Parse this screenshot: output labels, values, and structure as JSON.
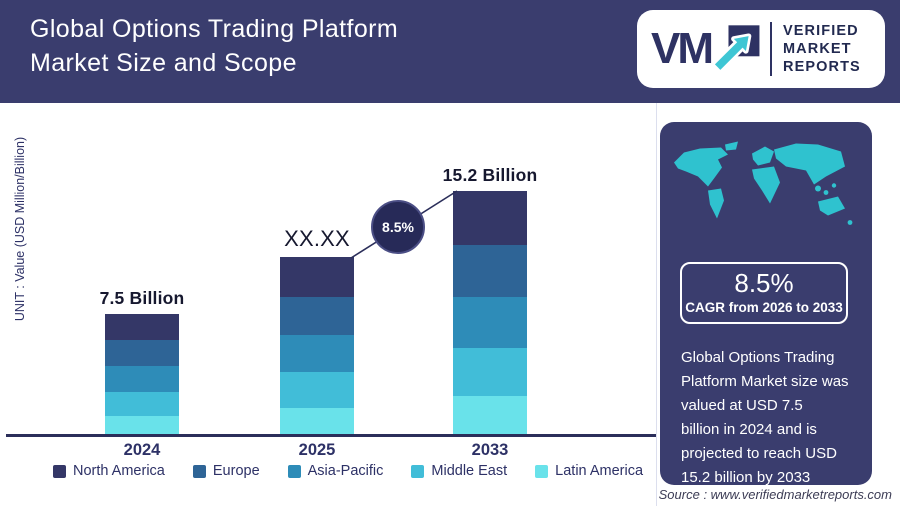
{
  "header": {
    "title_lines": [
      "Global Options Trading Platform",
      "Market Size and Scope"
    ],
    "logo": {
      "mark": "VM",
      "brand_lines": [
        "VERIFIED",
        "MARKET",
        "REPORTS"
      ]
    }
  },
  "chart_data": {
    "type": "bar",
    "stacked": true,
    "unit_label": "UNIT : Value (USD Million/Billion)",
    "value_unit": "USD Billion",
    "categories": [
      "2024",
      "2025",
      "2033"
    ],
    "totals_display": [
      "7.5 Billion",
      "XX.XX",
      "15.2 Billion"
    ],
    "cagr_badge": "8.5%",
    "legend_position": "bottom",
    "series": [
      {
        "name": "North America",
        "color": "#343767",
        "values": [
          1.6,
          2.5,
          3.4
        ]
      },
      {
        "name": "Europe",
        "color": "#2e6496",
        "values": [
          1.65,
          2.4,
          3.2
        ]
      },
      {
        "name": "Asia-Pacific",
        "color": "#2e8cb8",
        "values": [
          1.6,
          2.3,
          3.2
        ]
      },
      {
        "name": "Middle East",
        "color": "#41bdd8",
        "values": [
          1.5,
          2.2,
          3.05
        ]
      },
      {
        "name": "Latin America",
        "color": "#69e2ea",
        "values": [
          1.15,
          1.65,
          2.35
        ]
      }
    ]
  },
  "sidebar": {
    "cagr_value": "8.5%",
    "cagr_caption": "CAGR from 2026 to 2033",
    "description": "Global Options Trading\nPlatform Market size was\nvalued at USD 7.5\nbillion in 2024 and is\nprojected to reach USD\n15.2 billion by 2033"
  },
  "footer": {
    "source": "Source : www.verifiedmarketreports.com"
  },
  "colors": {
    "header_navy": "#3a3d6e",
    "badge_navy": "#272a58",
    "accent_teal": "#2fc2cf",
    "axis_navy": "#2b2e5a",
    "text_navy": "#2d3166"
  }
}
